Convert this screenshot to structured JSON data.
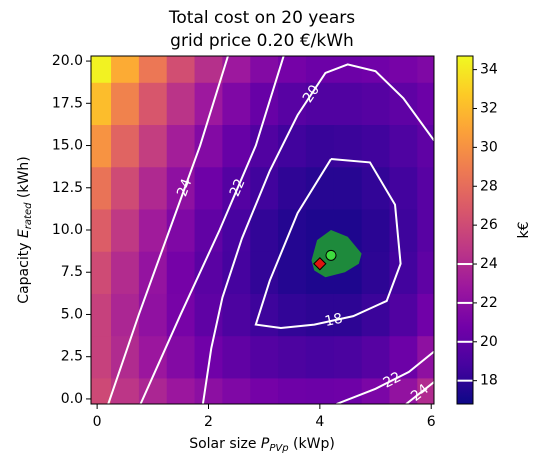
{
  "chart_data": {
    "type": "heatmap",
    "title": [
      "Total cost on 20 years",
      "grid price 0.20 €/kWh"
    ],
    "xlabel": [
      "Solar size ",
      "P",
      "PVp",
      " (kWp)"
    ],
    "ylabel": [
      "Capacity ",
      "E",
      "rated",
      " (kWh)"
    ],
    "colorbar_label": "k€",
    "xlim": [
      -0.11,
      6.05
    ],
    "ylim": [
      -0.3,
      20.3
    ],
    "xticks": [
      0,
      2,
      4,
      6
    ],
    "yticks": [
      {
        "value": 0,
        "label": "0.0"
      },
      {
        "value": 2.5,
        "label": "2.5"
      },
      {
        "value": 5,
        "label": "5.0"
      },
      {
        "value": 7.5,
        "label": "7.5"
      },
      {
        "value": 10,
        "label": "10.0"
      },
      {
        "value": 12.5,
        "label": "12.5"
      },
      {
        "value": 15,
        "label": "15.0"
      },
      {
        "value": 17.5,
        "label": "17.5"
      },
      {
        "value": 20,
        "label": "20.0"
      }
    ],
    "clim": [
      16.8,
      34.7
    ],
    "cticks": [
      18,
      20,
      22,
      24,
      26,
      28,
      30,
      32,
      34
    ],
    "colormap": [
      "#0d0887",
      "#46039f",
      "#7201a8",
      "#9c179e",
      "#bd3786",
      "#d8576b",
      "#ed7953",
      "#fb9f3a",
      "#fdca26",
      "#f0f921"
    ],
    "heatmap": {
      "x": [
        0,
        0.5,
        1,
        1.5,
        2,
        2.5,
        3,
        3.5,
        4,
        4.5,
        5,
        5.5,
        6
      ],
      "y": [
        0,
        2.5,
        5,
        7.5,
        10,
        12.5,
        15,
        17.5,
        20
      ],
      "z": [
        [
          25.9,
          24.7,
          23.7,
          22.7,
          22.0,
          21.4,
          20.9,
          20.6,
          20.5,
          20.6,
          21.2,
          22.3,
          24.0
        ],
        [
          25.4,
          24.0,
          22.7,
          21.6,
          20.7,
          20.0,
          19.4,
          19.1,
          18.9,
          19.0,
          19.5,
          20.5,
          22.1
        ],
        [
          25.4,
          23.7,
          22.2,
          21.0,
          19.9,
          19.1,
          18.5,
          18.1,
          17.9,
          17.9,
          18.4,
          19.3,
          20.7
        ],
        [
          26.0,
          24.1,
          22.4,
          20.9,
          19.7,
          18.8,
          18.1,
          17.6,
          17.4,
          17.4,
          17.9,
          18.7,
          19.9
        ],
        [
          27.1,
          24.9,
          23.0,
          21.4,
          20.0,
          18.9,
          18.1,
          17.6,
          17.4,
          17.4,
          17.8,
          18.5,
          19.6
        ],
        [
          28.4,
          26.0,
          23.9,
          22.1,
          20.6,
          19.4,
          18.6,
          18.0,
          17.7,
          17.7,
          18.1,
          18.7,
          19.6
        ],
        [
          30.1,
          27.5,
          25.2,
          23.2,
          21.6,
          20.3,
          19.3,
          18.6,
          18.3,
          18.4,
          18.6,
          19.2,
          19.9
        ],
        [
          32.1,
          29.2,
          26.7,
          24.6,
          22.8,
          21.4,
          20.3,
          19.6,
          19.3,
          19.3,
          19.5,
          19.9,
          20.5
        ],
        [
          34.4,
          31.3,
          28.6,
          26.2,
          24.3,
          22.8,
          21.6,
          20.9,
          20.5,
          20.5,
          20.7,
          21.0,
          21.4
        ]
      ]
    },
    "contour_levels": [
      18,
      20,
      22,
      24
    ],
    "contour_color": "#ffffff",
    "contours": [
      {
        "level": 24,
        "x": [
          0.2,
          0.75,
          1.3,
          1.85,
          2.35
        ],
        "y": [
          -0.3,
          5,
          10,
          15,
          20.3
        ]
      },
      {
        "level": 22,
        "x": [
          0.78,
          1.5,
          2.2,
          2.85,
          3.35
        ],
        "y": [
          -0.3,
          5,
          10,
          15,
          20.3
        ]
      },
      {
        "level": 20,
        "x": [
          1.9,
          2.05,
          2.25,
          2.6,
          3.1,
          3.6,
          4.1,
          4.5,
          5.0,
          5.5,
          6.05
        ],
        "y": [
          -0.3,
          3,
          6,
          9.5,
          13.5,
          16.8,
          19.3,
          19.8,
          19.4,
          17.8,
          15.3
        ]
      },
      {
        "level": 18,
        "x": [
          4.2,
          4.9,
          5.35,
          5.45,
          5.2,
          4.6,
          3.9,
          3.3,
          2.85,
          3.1,
          3.6,
          4.2
        ],
        "y": [
          14.2,
          14.0,
          11.5,
          8,
          5.8,
          4.9,
          4.4,
          4.2,
          4.4,
          7,
          11,
          14.2
        ]
      },
      {
        "level": 22,
        "x": [
          4.3,
          5.0,
          5.6,
          6.05
        ],
        "y": [
          -0.3,
          0.6,
          1.6,
          2.8
        ]
      },
      {
        "level": 24,
        "x": [
          5.55,
          6.05
        ],
        "y": [
          -0.3,
          1.0
        ]
      }
    ],
    "optimum_region": {
      "color": "#1e8a3c",
      "x": [
        3.85,
        3.95,
        4.2,
        4.5,
        4.75,
        4.7,
        4.45,
        4.1,
        3.9,
        3.85
      ],
      "y": [
        8.2,
        9.4,
        10.0,
        9.6,
        8.6,
        8.0,
        7.5,
        7.2,
        7.6,
        8.2
      ]
    },
    "markers": [
      {
        "x": 4.2,
        "y": 8.5,
        "color": "#3fdc3f",
        "shape": "circle"
      },
      {
        "x": 4.0,
        "y": 8.0,
        "color": "#e0140f",
        "shape": "diamond"
      }
    ]
  }
}
